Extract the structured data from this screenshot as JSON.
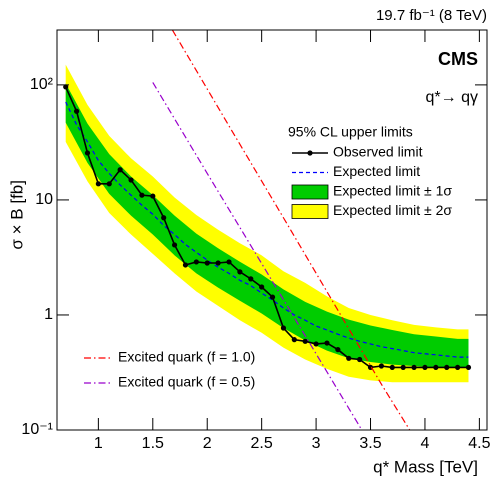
{
  "chart_data": {
    "type": "line",
    "lumi_label": "19.7 fb⁻¹ (8 TeV)",
    "experiment": "CMS",
    "process": "q*→ qγ",
    "legend_title": "95% CL upper limits",
    "xlabel": "q* Mass [TeV]",
    "ylabel": "σ × B [fb]",
    "xlim": [
      0.62,
      4.57
    ],
    "ylim": [
      0.1,
      300
    ],
    "ylog": true,
    "xticks": [
      1,
      1.5,
      2,
      2.5,
      3,
      3.5,
      4,
      4.5
    ],
    "yticks": [
      {
        "value": 0.1,
        "label": "10⁻¹"
      },
      1,
      10,
      {
        "value": 100,
        "label": "10²"
      }
    ],
    "series": [
      {
        "name": "Observed limit",
        "color": "#000000",
        "marker": "circle",
        "x": [
          0.7,
          0.8,
          0.9,
          1.0,
          1.1,
          1.2,
          1.3,
          1.4,
          1.5,
          1.6,
          1.7,
          1.8,
          1.9,
          2.0,
          2.1,
          2.2,
          2.3,
          2.4,
          2.5,
          2.6,
          2.7,
          2.8,
          2.9,
          3.0,
          3.1,
          3.2,
          3.3,
          3.4,
          3.5,
          3.6,
          3.7,
          3.8,
          3.9,
          4.0,
          4.1,
          4.2,
          4.3,
          4.4
        ],
        "values": [
          96,
          59,
          25.6,
          13.8,
          13.8,
          18.3,
          14.9,
          11,
          10.8,
          7.0,
          4.06,
          2.72,
          2.89,
          2.83,
          2.83,
          2.89,
          2.37,
          2.06,
          1.75,
          1.43,
          0.77,
          0.61,
          0.59,
          0.56,
          0.57,
          0.5,
          0.42,
          0.41,
          0.35,
          0.36,
          0.35,
          0.35,
          0.35,
          0.35,
          0.35,
          0.35,
          0.35,
          0.35
        ]
      },
      {
        "name": "Expected limit",
        "color": "#0000ff",
        "dash": "dashed",
        "x": [
          0.7,
          0.8,
          0.9,
          1.0,
          1.1,
          1.2,
          1.3,
          1.4,
          1.5,
          1.6,
          1.7,
          1.8,
          1.9,
          2.0,
          2.1,
          2.2,
          2.3,
          2.4,
          2.5,
          2.6,
          2.7,
          2.8,
          2.9,
          3.0,
          3.1,
          3.2,
          3.3,
          3.4,
          3.5,
          3.6,
          3.7,
          3.8,
          3.9,
          4.0,
          4.1,
          4.2,
          4.3,
          4.4
        ],
        "values": [
          71,
          45,
          32,
          22,
          17,
          13.5,
          11,
          9,
          7.5,
          6,
          5,
          4.1,
          3.5,
          3.0,
          2.6,
          2.3,
          2.0,
          1.8,
          1.55,
          1.35,
          1.15,
          1.0,
          0.9,
          0.8,
          0.74,
          0.68,
          0.63,
          0.59,
          0.56,
          0.53,
          0.51,
          0.49,
          0.47,
          0.46,
          0.45,
          0.44,
          0.43,
          0.43
        ]
      },
      {
        "name": "Expected limit ± 1σ",
        "color": "#00cc00",
        "x": [
          0.7,
          0.9,
          1.1,
          1.3,
          1.5,
          1.7,
          1.9,
          2.1,
          2.3,
          2.5,
          2.7,
          2.9,
          3.1,
          3.3,
          3.5,
          3.7,
          3.9,
          4.1,
          4.3,
          4.4
        ],
        "low": [
          47,
          21,
          11.3,
          7.3,
          5,
          3.3,
          2.3,
          1.73,
          1.33,
          1.03,
          0.77,
          0.6,
          0.49,
          0.42,
          0.39,
          0.37,
          0.36,
          0.35,
          0.35,
          0.35
        ],
        "high": [
          103,
          46,
          25,
          16,
          11,
          7.3,
          5.1,
          3.8,
          2.9,
          2.25,
          1.67,
          1.3,
          1.07,
          0.91,
          0.81,
          0.74,
          0.68,
          0.65,
          0.62,
          0.62
        ]
      },
      {
        "name": "Expected limit ± 2σ",
        "color": "#ffff00",
        "x": [
          0.7,
          0.9,
          1.1,
          1.3,
          1.5,
          1.7,
          1.9,
          2.1,
          2.3,
          2.5,
          2.7,
          2.9,
          3.1,
          3.3,
          3.5,
          3.7,
          3.9,
          4.1,
          4.3,
          4.4
        ],
        "low": [
          32,
          14.5,
          7.7,
          5,
          3.4,
          2.3,
          1.6,
          1.2,
          0.9,
          0.7,
          0.52,
          0.41,
          0.34,
          0.29,
          0.27,
          0.26,
          0.26,
          0.26,
          0.26,
          0.26
        ],
        "high": [
          150,
          67,
          36,
          23,
          16,
          10.5,
          7.4,
          5.5,
          4.2,
          3.3,
          2.4,
          1.9,
          1.45,
          1.15,
          1.0,
          0.9,
          0.82,
          0.78,
          0.75,
          0.75
        ]
      }
    ],
    "theory": [
      {
        "name": "Excited quark (f = 1.0)",
        "color": "#ff0000",
        "dash": "dashdot",
        "x": [
          1.68,
          2.2,
          2.7,
          3.2,
          3.6,
          3.86
        ],
        "values": [
          300,
          44,
          7,
          1.1,
          0.25,
          0.1
        ]
      },
      {
        "name": "Excited quark (f = 0.5)",
        "color": "#9900cc",
        "dash": "dashdot",
        "x": [
          1.5,
          2.0,
          2.5,
          3.0,
          3.42
        ],
        "values": [
          105,
          17,
          2.8,
          0.46,
          0.1
        ]
      }
    ]
  }
}
